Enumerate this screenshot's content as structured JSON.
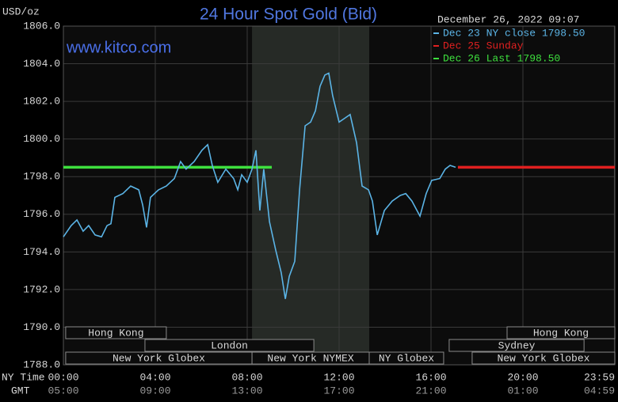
{
  "chart_data": {
    "type": "line",
    "title": "24 Hour Spot Gold (Bid)",
    "y_label": "USD/oz",
    "watermark": "www.kitco.com",
    "timestamp": "December 26, 2022 09:07",
    "x_row_labels": [
      "NY Time",
      "GMT"
    ],
    "xlim": [
      0,
      24
    ],
    "ylim": [
      1788,
      1806
    ],
    "xticks": [
      {
        "value": 0,
        "label": "00:00"
      },
      {
        "value": 4,
        "label": "04:00"
      },
      {
        "value": 8,
        "label": "08:00"
      },
      {
        "value": 12,
        "label": "12:00"
      },
      {
        "value": 16,
        "label": "16:00"
      },
      {
        "value": 20,
        "label": "20:00"
      },
      {
        "value": 23.98,
        "label": "23:59"
      }
    ],
    "gmt_tick_labels": [
      "05:00",
      "09:00",
      "13:00",
      "17:00",
      "21:00",
      "01:00",
      "04:59"
    ],
    "yticks": [
      {
        "value": 1788,
        "label": "1788.0"
      },
      {
        "value": 1790,
        "label": "1790.0"
      },
      {
        "value": 1792,
        "label": "1792.0"
      },
      {
        "value": 1794,
        "label": "1794.0"
      },
      {
        "value": 1796,
        "label": "1796.0"
      },
      {
        "value": 1798,
        "label": "1798.0"
      },
      {
        "value": 1800,
        "label": "1800.0"
      },
      {
        "value": 1802,
        "label": "1802.0"
      },
      {
        "value": 1804,
        "label": "1804.0"
      },
      {
        "value": 1806,
        "label": "1806.0"
      }
    ],
    "grid": true,
    "shaded_region": [
      8.21,
      13.31
    ],
    "series": [
      {
        "name": "Dec 23 NY close 1798.50",
        "color": "#5bb4e6",
        "x": [
          0,
          0.34,
          0.59,
          0.86,
          1.1,
          1.38,
          1.66,
          1.9,
          2.07,
          2.24,
          2.59,
          2.93,
          3.28,
          3.45,
          3.62,
          3.79,
          4.14,
          4.48,
          4.83,
          5.1,
          5.34,
          5.69,
          6.03,
          6.28,
          6.48,
          6.72,
          7.07,
          7.41,
          7.59,
          7.76,
          8.0,
          8.21,
          8.38,
          8.55,
          8.72,
          8.97,
          9.24,
          9.48,
          9.66,
          9.83,
          10.07,
          10.28,
          10.52,
          10.76,
          10.97,
          11.17,
          11.38,
          11.55,
          11.72,
          12.0,
          12.24,
          12.48,
          12.76,
          13.0,
          13.28,
          13.45,
          13.66,
          13.97,
          14.31,
          14.66,
          14.9,
          15.17,
          15.52,
          15.79,
          16.03,
          16.38,
          16.62,
          16.83,
          17.07
        ],
        "values": [
          1794.8,
          1795.4,
          1795.7,
          1795.1,
          1795.4,
          1794.9,
          1794.8,
          1795.4,
          1795.5,
          1796.9,
          1797.1,
          1797.5,
          1797.3,
          1796.5,
          1795.3,
          1796.9,
          1797.3,
          1797.5,
          1797.9,
          1798.8,
          1798.4,
          1798.8,
          1799.4,
          1799.7,
          1798.6,
          1797.7,
          1798.4,
          1797.9,
          1797.3,
          1798.1,
          1797.7,
          1798.4,
          1799.4,
          1796.2,
          1798.4,
          1795.6,
          1794.1,
          1792.9,
          1791.5,
          1792.7,
          1793.5,
          1797.3,
          1800.7,
          1800.9,
          1801.5,
          1802.8,
          1803.4,
          1803.5,
          1802.3,
          1800.9,
          1801.1,
          1801.3,
          1799.8,
          1797.5,
          1797.3,
          1796.7,
          1794.9,
          1796.2,
          1796.7,
          1797.0,
          1797.1,
          1796.7,
          1795.9,
          1797.1,
          1797.8,
          1797.9,
          1798.4,
          1798.6,
          1798.5
        ]
      },
      {
        "name": "Dec 25 Sunday",
        "color": "#e02020",
        "x": [
          17.17,
          24
        ],
        "values": [
          1798.5,
          1798.5
        ]
      },
      {
        "name": "Dec 26 Last 1798.50",
        "color": "#3ee03e",
        "x": [
          0,
          9.07
        ],
        "values": [
          1798.5,
          1798.5
        ]
      }
    ],
    "sessions": [
      {
        "label": "Hong Kong",
        "row": 0,
        "start": 0.1,
        "end": 4.48
      },
      {
        "label": "Hong Kong",
        "row": 0,
        "start": 19.31,
        "end": 24
      },
      {
        "label": "London",
        "row": 1,
        "start": 3.55,
        "end": 10.9
      },
      {
        "label": "Sydney",
        "row": 1,
        "start": 16.79,
        "end": 22.66
      },
      {
        "label": "New York Globex",
        "row": 2,
        "start": 0.1,
        "end": 8.21
      },
      {
        "label": "New York NYMEX",
        "row": 2,
        "start": 8.21,
        "end": 13.31
      },
      {
        "label": "NY Globex",
        "row": 2,
        "start": 13.31,
        "end": 16.55
      },
      {
        "label": "New York Globex",
        "row": 2,
        "start": 17.79,
        "end": 24
      }
    ]
  }
}
